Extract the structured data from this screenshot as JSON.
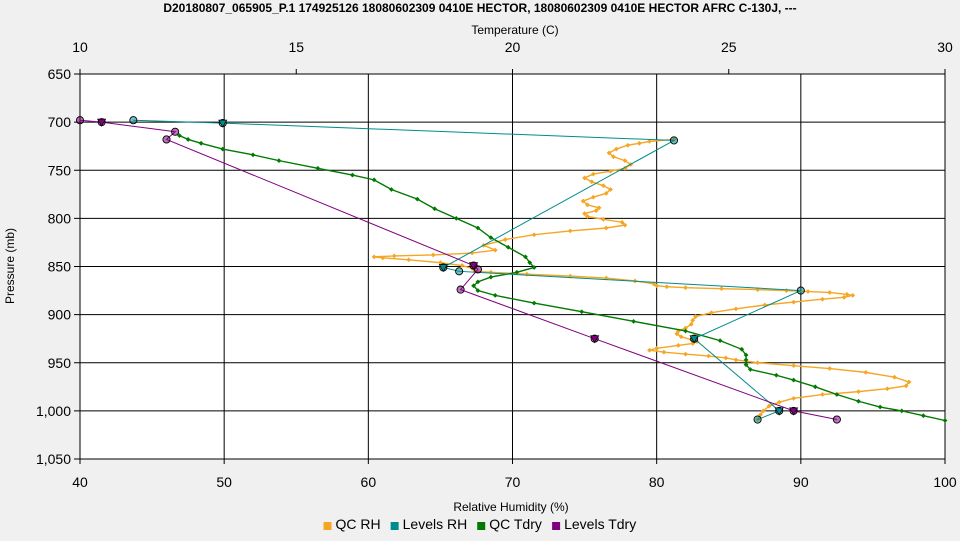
{
  "chart_data": {
    "type": "line",
    "title": "D20180807_065905_P.1 174925126 18080602309 0410E HECTOR, 18080602309 0410E HECTOR AFRC C-130J, ---",
    "xlabel": "Relative Humidity (%)",
    "x2label": "Temperature (C)",
    "ylabel": "Pressure (mb)",
    "xlim": [
      40,
      100
    ],
    "x2lim": [
      10,
      30
    ],
    "ylim": [
      650,
      1050
    ],
    "y_inverted": true,
    "grid": true,
    "legend_position": "bottom",
    "x_ticks": [
      "40",
      "50",
      "60",
      "70",
      "80",
      "90",
      "100"
    ],
    "x2_ticks": [
      "10",
      "15",
      "20",
      "25",
      "30"
    ],
    "y_ticks": [
      "650",
      "700",
      "750",
      "800",
      "850",
      "900",
      "950",
      "1,000",
      "1,050"
    ],
    "series": [
      {
        "name": "QC RH",
        "axis": "x",
        "color": "#f5a623",
        "marker": "diamond",
        "line": true,
        "markers_every_point": true,
        "points": [
          [
            81.2,
            718
          ],
          [
            79.5,
            720
          ],
          [
            78.8,
            722
          ],
          [
            78.0,
            724
          ],
          [
            77.2,
            728
          ],
          [
            76.7,
            732
          ],
          [
            77.0,
            736
          ],
          [
            77.8,
            740
          ],
          [
            78.2,
            744
          ],
          [
            77.8,
            748
          ],
          [
            76.8,
            751
          ],
          [
            75.6,
            754
          ],
          [
            75.0,
            758
          ],
          [
            75.5,
            762
          ],
          [
            76.3,
            766
          ],
          [
            76.8,
            770
          ],
          [
            76.5,
            774
          ],
          [
            75.6,
            778
          ],
          [
            74.9,
            782
          ],
          [
            75.2,
            786
          ],
          [
            76.0,
            789
          ],
          [
            75.8,
            792
          ],
          [
            75.0,
            795
          ],
          [
            75.2,
            798
          ],
          [
            76.3,
            801
          ],
          [
            77.6,
            804
          ],
          [
            77.8,
            807
          ],
          [
            76.5,
            810
          ],
          [
            74.0,
            813
          ],
          [
            71.5,
            817
          ],
          [
            69.5,
            822
          ],
          [
            68.0,
            828
          ],
          [
            68.8,
            833
          ],
          [
            67.2,
            836
          ],
          [
            64.5,
            838
          ],
          [
            61.8,
            839
          ],
          [
            60.4,
            840
          ],
          [
            61.0,
            841
          ],
          [
            62.8,
            843
          ],
          [
            65.0,
            846
          ],
          [
            66.5,
            849
          ],
          [
            67.2,
            852
          ],
          [
            67.4,
            855
          ],
          [
            68.5,
            856
          ],
          [
            71.0,
            858
          ],
          [
            74.0,
            860
          ],
          [
            76.5,
            862
          ],
          [
            78.5,
            865
          ],
          [
            79.8,
            868
          ],
          [
            80.0,
            870
          ],
          [
            80.7,
            871
          ],
          [
            82.0,
            872
          ],
          [
            84.5,
            873
          ],
          [
            87.0,
            874
          ],
          [
            89.0,
            875
          ],
          [
            90.5,
            876
          ],
          [
            92.0,
            877
          ],
          [
            93.2,
            879
          ],
          [
            93.6,
            880
          ],
          [
            93.0,
            882
          ],
          [
            91.5,
            884
          ],
          [
            89.5,
            887
          ],
          [
            87.5,
            890
          ],
          [
            85.5,
            894
          ],
          [
            83.8,
            898
          ],
          [
            82.7,
            902
          ],
          [
            82.5,
            906
          ],
          [
            82.4,
            910
          ],
          [
            82.0,
            914
          ],
          [
            81.5,
            917
          ],
          [
            81.4,
            920
          ],
          [
            81.7,
            923
          ],
          [
            82.4,
            926
          ],
          [
            82.8,
            928
          ],
          [
            82.5,
            930
          ],
          [
            81.5,
            932
          ],
          [
            80.0,
            935
          ],
          [
            79.5,
            937
          ],
          [
            80.5,
            939
          ],
          [
            82.0,
            941
          ],
          [
            83.6,
            943
          ],
          [
            84.8,
            945
          ],
          [
            85.5,
            947
          ],
          [
            87.0,
            950
          ],
          [
            89.5,
            953
          ],
          [
            92.0,
            956
          ],
          [
            94.5,
            960
          ],
          [
            96.5,
            965
          ],
          [
            97.5,
            970
          ],
          [
            97.3,
            974
          ],
          [
            96.0,
            977
          ],
          [
            94.0,
            980
          ],
          [
            91.5,
            983
          ],
          [
            89.5,
            987
          ],
          [
            88.5,
            991
          ],
          [
            87.8,
            995
          ],
          [
            87.4,
            1000
          ],
          [
            87.2,
            1004
          ],
          [
            87.0,
            1009
          ]
        ]
      },
      {
        "name": "Levels RH",
        "axis": "x",
        "color": "#008b8b",
        "marker": "circle",
        "line": true,
        "markers_every_point": false,
        "points": [
          [
            43.7,
            698
          ],
          [
            49.9,
            701
          ],
          [
            81.2,
            719
          ],
          [
            65.2,
            851
          ],
          [
            66.3,
            855
          ],
          [
            90.0,
            875
          ],
          [
            82.6,
            925
          ],
          [
            88.5,
            1000
          ],
          [
            87.0,
            1009
          ]
        ],
        "triangles": [
          [
            49.9,
            701
          ],
          [
            65.2,
            851
          ],
          [
            82.6,
            925
          ],
          [
            88.5,
            1000
          ]
        ]
      },
      {
        "name": "QC Tdry",
        "axis": "x2",
        "color": "#007a00",
        "marker": "diamond",
        "line": true,
        "markers_every_point": true,
        "points": [
          [
            12.3,
            714
          ],
          [
            12.5,
            718
          ],
          [
            12.8,
            722
          ],
          [
            13.3,
            728
          ],
          [
            14.0,
            734
          ],
          [
            14.6,
            740
          ],
          [
            15.5,
            748
          ],
          [
            16.3,
            755
          ],
          [
            16.8,
            760
          ],
          [
            17.2,
            770
          ],
          [
            17.8,
            780
          ],
          [
            18.2,
            790
          ],
          [
            18.7,
            800
          ],
          [
            19.2,
            810
          ],
          [
            19.5,
            820
          ],
          [
            19.9,
            830
          ],
          [
            20.3,
            840
          ],
          [
            20.4,
            846
          ],
          [
            20.5,
            851
          ],
          [
            20.1,
            856
          ],
          [
            19.5,
            861
          ],
          [
            19.2,
            866
          ],
          [
            19.1,
            870
          ],
          [
            19.2,
            875
          ],
          [
            19.6,
            880
          ],
          [
            20.5,
            888
          ],
          [
            21.6,
            897
          ],
          [
            22.8,
            907
          ],
          [
            24.0,
            917
          ],
          [
            24.8,
            927
          ],
          [
            25.3,
            936
          ],
          [
            25.4,
            942
          ],
          [
            25.4,
            947
          ],
          [
            25.4,
            952
          ],
          [
            25.5,
            957
          ],
          [
            26.1,
            963
          ],
          [
            26.5,
            968
          ],
          [
            27.0,
            975
          ],
          [
            27.5,
            983
          ],
          [
            28.0,
            990
          ],
          [
            28.5,
            996
          ],
          [
            29.0,
            1000
          ],
          [
            29.5,
            1005
          ],
          [
            30.0,
            1010
          ]
        ]
      },
      {
        "name": "Levels Tdry",
        "axis": "x2",
        "color": "#800080",
        "marker": "circle",
        "line": true,
        "markers_every_point": false,
        "points": [
          [
            10.0,
            698
          ],
          [
            10.5,
            700
          ],
          [
            12.2,
            710
          ],
          [
            12.0,
            718
          ],
          [
            19.1,
            849
          ],
          [
            19.2,
            853
          ],
          [
            18.8,
            874
          ],
          [
            21.9,
            925
          ],
          [
            26.5,
            1000
          ],
          [
            27.5,
            1009
          ]
        ],
        "triangles": [
          [
            10.5,
            700
          ],
          [
            19.1,
            849
          ],
          [
            21.9,
            925
          ],
          [
            26.5,
            1000
          ]
        ]
      }
    ]
  }
}
